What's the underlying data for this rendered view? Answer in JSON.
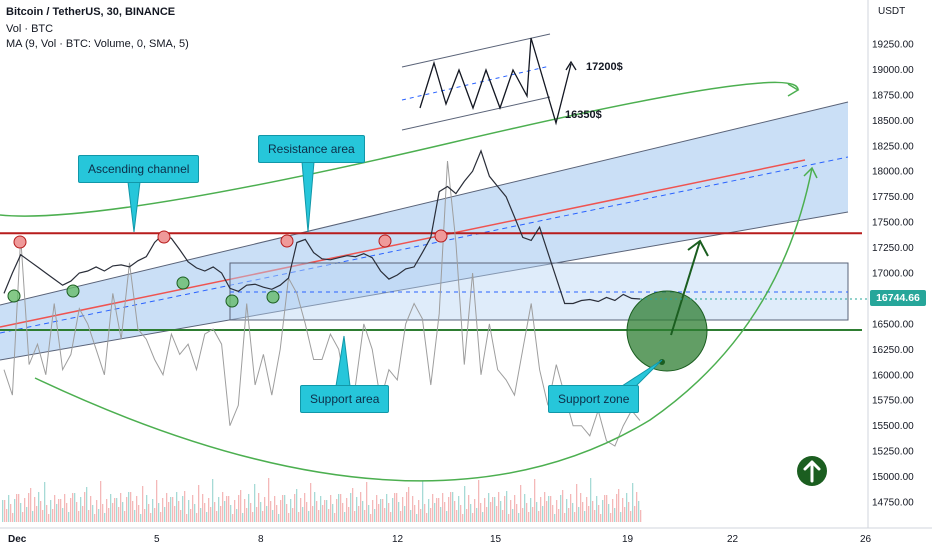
{
  "header": {
    "title": "Bitcoin / TetherUS, 30, BINANCE",
    "volume_label": "Vol · BTC",
    "ma_label": "MA (9, Vol · BTC: Volume, 0, SMA, 5)"
  },
  "chart_data": {
    "type": "line",
    "title": "Bitcoin / TetherUS, 30, BINANCE",
    "currency": "USDT",
    "last_price": "16744.66",
    "ylim": [
      14500,
      19650
    ],
    "y_ticks": [
      "19250.00",
      "19000.00",
      "18750.00",
      "18500.00",
      "18250.00",
      "18000.00",
      "17750.00",
      "17500.00",
      "17250.00",
      "17000.00",
      "16750.00",
      "16500.00",
      "16250.00",
      "16000.00",
      "15750.00",
      "15500.00",
      "15250.00",
      "15000.00",
      "14750.00"
    ],
    "x_ticks": [
      "Dec",
      "5",
      "8",
      "12",
      "15",
      "19",
      "22",
      "26"
    ],
    "price_series": {
      "name": "BTC/USDT 30m",
      "points": [
        [
          0,
          16800
        ],
        [
          1,
          17000
        ],
        [
          2,
          17180
        ],
        [
          3,
          17120
        ],
        [
          4,
          17060
        ],
        [
          5,
          17000
        ],
        [
          6,
          16940
        ],
        [
          7,
          16880
        ],
        [
          8,
          16920
        ],
        [
          9,
          17000
        ],
        [
          10,
          17020
        ],
        [
          11,
          17060
        ],
        [
          12,
          17020
        ],
        [
          13,
          17070
        ],
        [
          14,
          17080
        ],
        [
          15,
          17060
        ],
        [
          16,
          17120
        ],
        [
          17,
          17160
        ],
        [
          18,
          17300
        ],
        [
          19,
          17380
        ],
        [
          20,
          17340
        ],
        [
          21,
          17230
        ],
        [
          22,
          17110
        ],
        [
          23,
          17050
        ],
        [
          24,
          17020
        ],
        [
          25,
          17060
        ],
        [
          26,
          17000
        ],
        [
          27,
          16850
        ],
        [
          28,
          16820
        ],
        [
          29,
          16880
        ],
        [
          30,
          16890
        ],
        [
          31,
          16860
        ],
        [
          32,
          16840
        ],
        [
          33,
          16880
        ],
        [
          34,
          16950
        ],
        [
          35,
          17300
        ],
        [
          36,
          17330
        ],
        [
          37,
          17200
        ],
        [
          38,
          17140
        ],
        [
          39,
          17130
        ],
        [
          40,
          17150
        ],
        [
          41,
          17170
        ],
        [
          42,
          17160
        ],
        [
          43,
          17190
        ],
        [
          44,
          17150
        ],
        [
          45,
          17020
        ],
        [
          46,
          16940
        ],
        [
          47,
          16980
        ],
        [
          48,
          17040
        ],
        [
          49,
          17060
        ],
        [
          50,
          17200
        ],
        [
          51,
          17350
        ],
        [
          52,
          17800
        ],
        [
          53,
          17850
        ],
        [
          54,
          17780
        ],
        [
          55,
          17900
        ],
        [
          56,
          18000
        ],
        [
          57,
          18200
        ],
        [
          58,
          17950
        ],
        [
          59,
          17850
        ],
        [
          60,
          17750
        ],
        [
          61,
          17550
        ],
        [
          62,
          17350
        ],
        [
          63,
          17320
        ],
        [
          64,
          17450
        ],
        [
          65,
          17200
        ],
        [
          66,
          16950
        ],
        [
          67,
          16700
        ],
        [
          68,
          16700
        ],
        [
          69,
          16730
        ],
        [
          70,
          16740
        ],
        [
          71,
          16720
        ],
        [
          72,
          16760
        ],
        [
          73,
          16730
        ],
        [
          74,
          16790
        ],
        [
          75,
          16750
        ],
        [
          76,
          16745
        ]
      ]
    },
    "ma_series": {
      "name": "MA (9, Vol · BTC: Volume, 0, SMA, 5)",
      "points": [
        [
          0,
          16050
        ],
        [
          1,
          15800
        ],
        [
          2,
          17350
        ],
        [
          3,
          16100
        ],
        [
          4,
          16300
        ],
        [
          5,
          16000
        ],
        [
          6,
          16700
        ],
        [
          7,
          16050
        ],
        [
          8,
          16200
        ],
        [
          9,
          16650
        ],
        [
          10,
          16500
        ],
        [
          11,
          16250
        ],
        [
          12,
          16000
        ],
        [
          13,
          16800
        ],
        [
          14,
          16350
        ],
        [
          15,
          17100
        ],
        [
          16,
          16450
        ],
        [
          17,
          16350
        ],
        [
          18,
          16150
        ],
        [
          19,
          16000
        ],
        [
          20,
          16400
        ],
        [
          21,
          16200
        ],
        [
          22,
          16300
        ],
        [
          23,
          16050
        ],
        [
          24,
          16400
        ],
        [
          25,
          16450
        ],
        [
          26,
          16300
        ],
        [
          27,
          15500
        ],
        [
          28,
          15700
        ],
        [
          29,
          16700
        ],
        [
          30,
          15900
        ],
        [
          31,
          16200
        ],
        [
          32,
          15800
        ],
        [
          33,
          16250
        ],
        [
          34,
          16950
        ],
        [
          35,
          16800
        ],
        [
          36,
          16500
        ],
        [
          37,
          16150
        ],
        [
          38,
          16150
        ],
        [
          39,
          16400
        ],
        [
          40,
          16250
        ],
        [
          41,
          15800
        ],
        [
          42,
          15900
        ],
        [
          43,
          16500
        ],
        [
          44,
          16250
        ],
        [
          45,
          15750
        ],
        [
          46,
          16050
        ],
        [
          47,
          15950
        ],
        [
          48,
          16500
        ],
        [
          49,
          16700
        ],
        [
          50,
          16550
        ],
        [
          51,
          15900
        ],
        [
          52,
          16600
        ],
        [
          53,
          18100
        ],
        [
          54,
          17300
        ],
        [
          55,
          16100
        ],
        [
          56,
          17000
        ],
        [
          57,
          16000
        ],
        [
          58,
          16500
        ],
        [
          59,
          16050
        ],
        [
          60,
          15950
        ],
        [
          61,
          15800
        ],
        [
          62,
          16250
        ],
        [
          63,
          16700
        ],
        [
          64,
          16050
        ],
        [
          65,
          15700
        ],
        [
          66,
          16100
        ],
        [
          67,
          15800
        ],
        [
          68,
          15500
        ],
        [
          69,
          15500
        ],
        [
          70,
          15400
        ],
        [
          71,
          15650
        ],
        [
          72,
          15350
        ],
        [
          73,
          15300
        ],
        [
          74,
          15500
        ],
        [
          75,
          15650
        ],
        [
          76,
          15550
        ]
      ]
    },
    "annotations": [
      "Ascending channel",
      "Resistance area",
      "Support area",
      "Support zone",
      "17200$",
      "16350$"
    ],
    "levels": {
      "resistance": 17390,
      "support": 16440,
      "last": 16744.66
    },
    "grid": false,
    "colors": {
      "channel_fill": "#b8d4f3",
      "channel_line": "#5a6378",
      "resistance": "#b71c1c",
      "support": "#2e7d32",
      "arc": "#4caf50",
      "ma": "#9e9e9e",
      "price": "#2a2e39",
      "callout": "#26c6da",
      "zone": "#2e7d32",
      "trend_red": "#ef5350",
      "dashed_blue": "#2962ff",
      "label_green": "#26a69a"
    }
  },
  "callouts": {
    "ascending_channel": "Ascending channel",
    "resistance_area": "Resistance area",
    "support_area": "Support area",
    "support_zone": "Support zone"
  },
  "targets": {
    "upper": "17200$",
    "lower": "16350$"
  },
  "axis": {
    "currency": "USDT",
    "last_price": "16744.66"
  },
  "buttons": {
    "go_up_icon": "arrow-up-circle-icon"
  }
}
